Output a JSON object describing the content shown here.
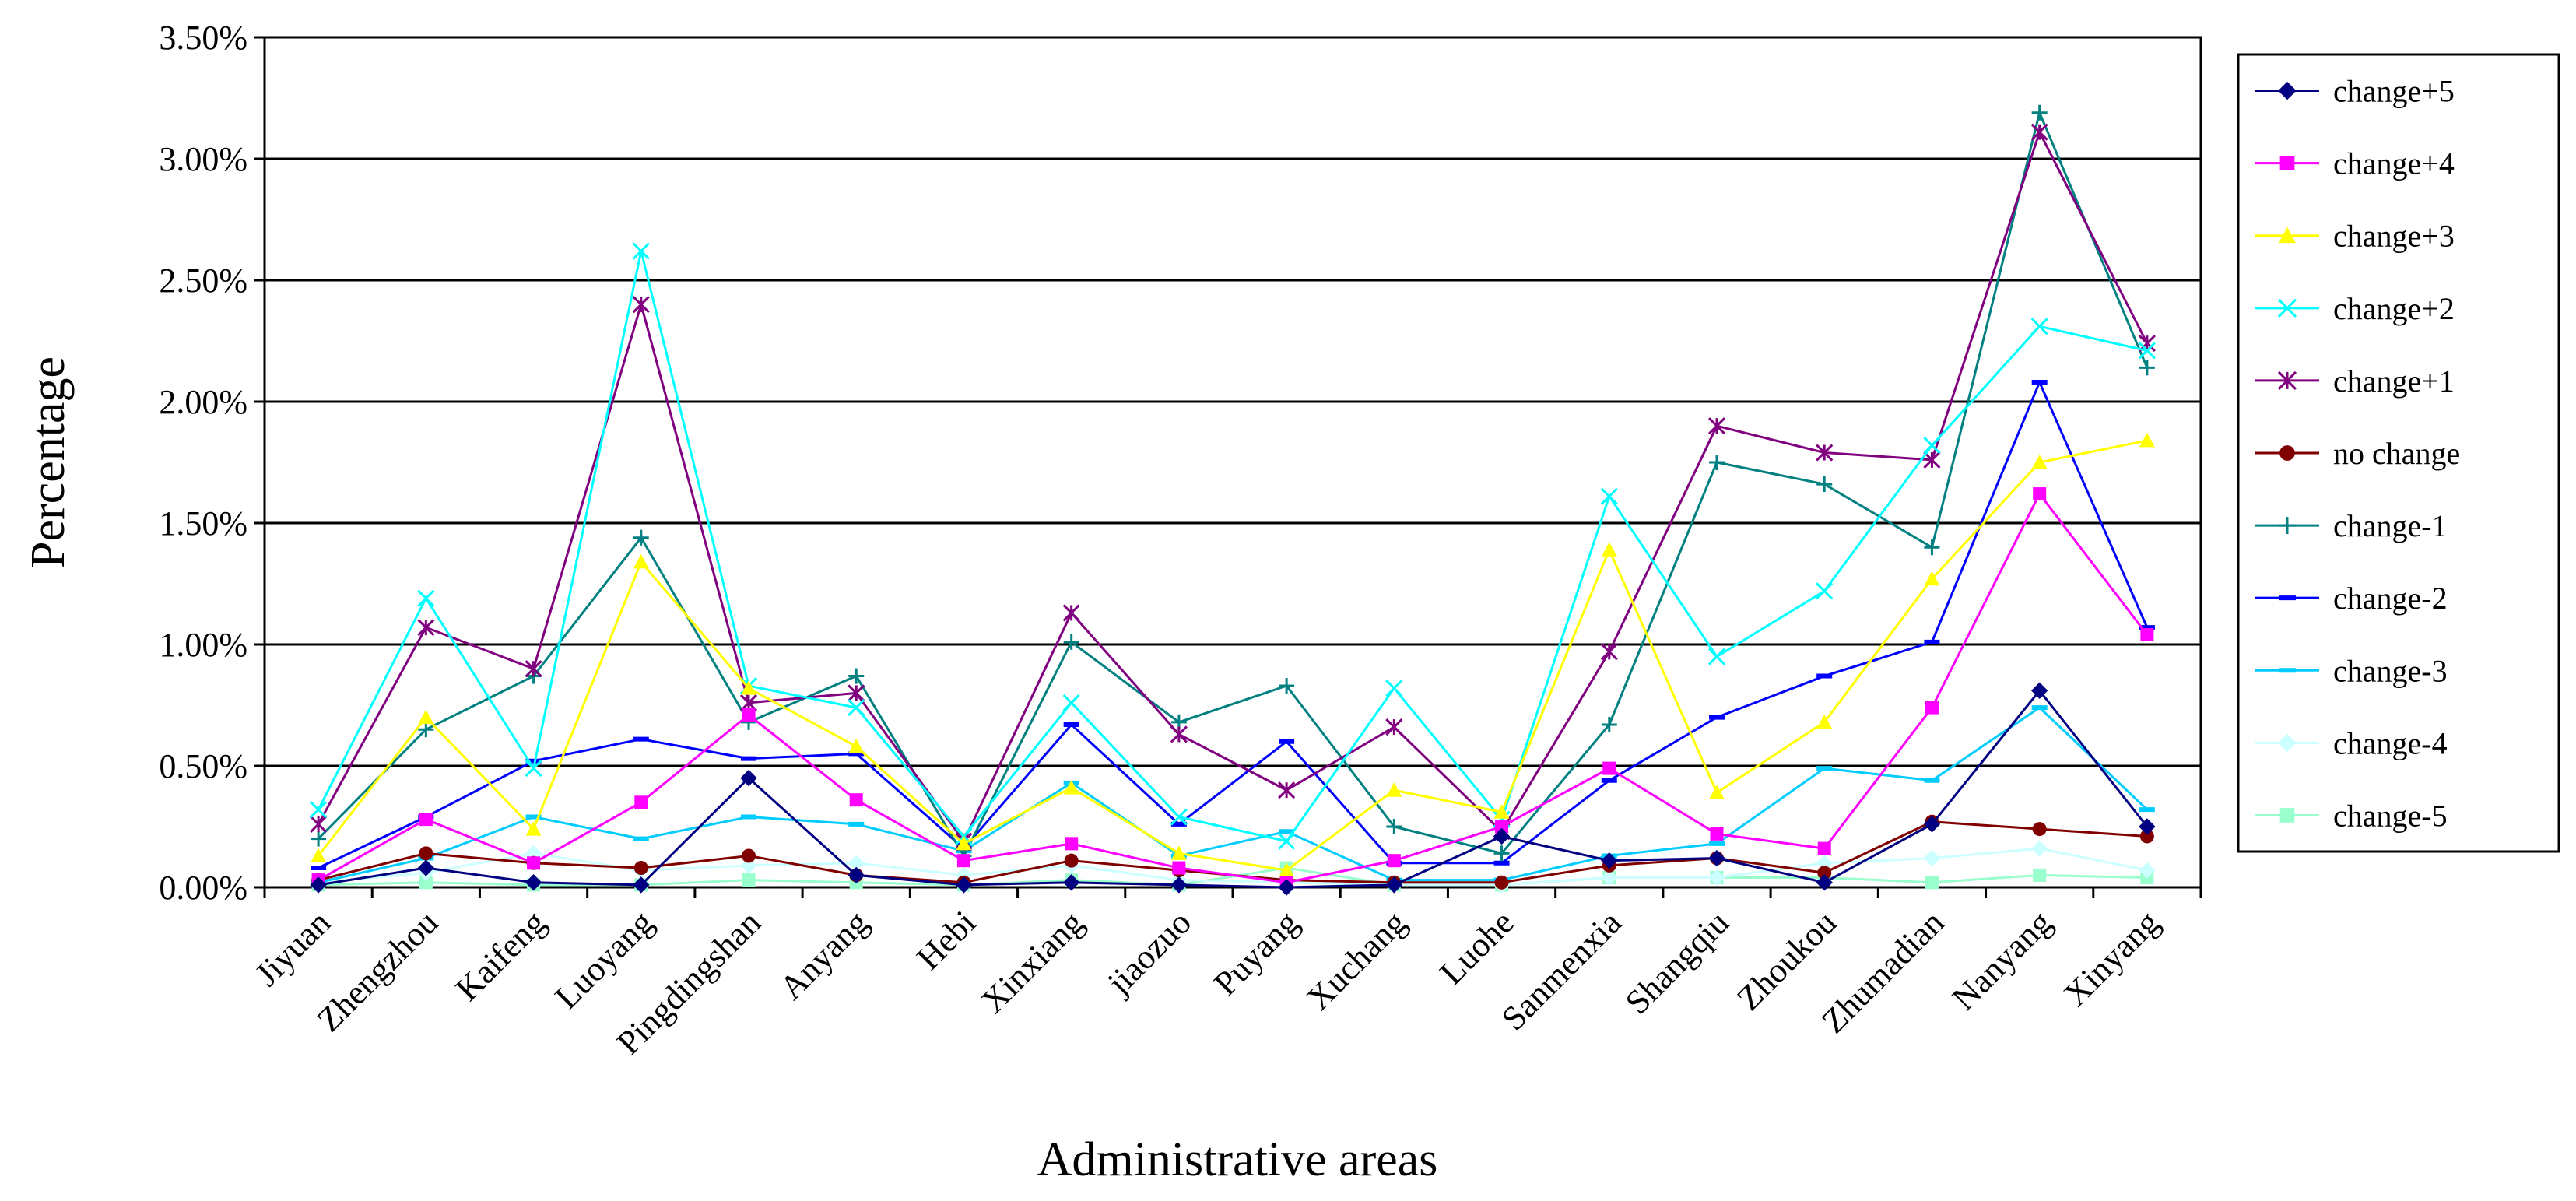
{
  "chart_data": {
    "type": "line",
    "title": "",
    "xlabel": "Administrative areas",
    "ylabel": "Percentage",
    "ylim": [
      0,
      0.035
    ],
    "yticks": [
      "0.00%",
      "0.50%",
      "1.00%",
      "1.50%",
      "2.00%",
      "2.50%",
      "3.00%",
      "3.50%"
    ],
    "grid": "horizontal",
    "legend_position": "right",
    "categories": [
      "Jiyuan",
      "Zhengzhou",
      "Kaifeng",
      "Luoyang",
      "Pingdingshan",
      "Anyang",
      "Hebi",
      "Xinxiang",
      "jiaozuo",
      "Puyang",
      "Xuchang",
      "Luohe",
      "Sanmenxia",
      "Shangqiu",
      "Zhoukou",
      "Zhumadian",
      "Nanyang",
      "Xinyang"
    ],
    "series": [
      {
        "name": "change+5",
        "color": "#000080",
        "marker": "diamond",
        "values": [
          0.0001,
          0.0008,
          0.0002,
          0.0001,
          0.0045,
          0.0005,
          0.0001,
          0.0002,
          0.0001,
          0.0,
          0.0001,
          0.0021,
          0.0011,
          0.0012,
          0.0002,
          0.0026,
          0.0081,
          0.0025
        ]
      },
      {
        "name": "change+4",
        "color": "#FF00FF",
        "marker": "square",
        "values": [
          0.0003,
          0.0028,
          0.001,
          0.0035,
          0.0071,
          0.0036,
          0.0011,
          0.0018,
          0.0008,
          0.0002,
          0.0011,
          0.0025,
          0.0049,
          0.0022,
          0.0016,
          0.0074,
          0.0162,
          0.0104
        ]
      },
      {
        "name": "change+3",
        "color": "#FFFF00",
        "marker": "triangle",
        "values": [
          0.0013,
          0.007,
          0.0024,
          0.0134,
          0.0082,
          0.0058,
          0.0018,
          0.0041,
          0.0014,
          0.0007,
          0.004,
          0.0031,
          0.0139,
          0.0039,
          0.0068,
          0.0127,
          0.0175,
          0.0184
        ]
      },
      {
        "name": "change+2",
        "color": "#00FFFF",
        "marker": "x",
        "values": [
          0.0032,
          0.0119,
          0.0049,
          0.0262,
          0.0083,
          0.0074,
          0.0021,
          0.0076,
          0.0029,
          0.0019,
          0.0082,
          0.0028,
          0.0161,
          0.0095,
          0.0122,
          0.0182,
          0.0231,
          0.0221
        ]
      },
      {
        "name": "change+1",
        "color": "#800080",
        "marker": "star",
        "values": [
          0.0026,
          0.0107,
          0.009,
          0.024,
          0.0076,
          0.008,
          0.0019,
          0.0113,
          0.0063,
          0.004,
          0.0066,
          0.0023,
          0.0097,
          0.019,
          0.0179,
          0.0176,
          0.0311,
          0.0224
        ]
      },
      {
        "name": "no  change",
        "color": "#800000",
        "marker": "circle",
        "values": [
          0.0003,
          0.0014,
          0.001,
          0.0008,
          0.0013,
          0.0005,
          0.0002,
          0.0011,
          0.0007,
          0.0003,
          0.0002,
          0.0002,
          0.0009,
          0.0012,
          0.0006,
          0.0027,
          0.0024,
          0.0021
        ]
      },
      {
        "name": "change-1",
        "color": "#008080",
        "marker": "plus",
        "values": [
          0.002,
          0.0065,
          0.0087,
          0.0144,
          0.0068,
          0.0087,
          0.0013,
          0.0101,
          0.0068,
          0.0083,
          0.0025,
          0.0014,
          0.0067,
          0.0175,
          0.0166,
          0.014,
          0.0319,
          0.0214
        ]
      },
      {
        "name": "change-2",
        "color": "#0000FF",
        "marker": "dash",
        "values": [
          0.0008,
          0.0029,
          0.0052,
          0.0061,
          0.0053,
          0.0055,
          0.0016,
          0.0067,
          0.0026,
          0.006,
          0.001,
          0.001,
          0.0044,
          0.007,
          0.0087,
          0.0101,
          0.0208,
          0.0107
        ]
      },
      {
        "name": "change-3",
        "color": "#00CCFF",
        "marker": "dash",
        "values": [
          0.0002,
          0.0012,
          0.0029,
          0.002,
          0.0029,
          0.0026,
          0.0015,
          0.0043,
          0.0013,
          0.0023,
          0.0003,
          0.0003,
          0.0013,
          0.0018,
          0.0049,
          0.0044,
          0.0074,
          0.0032
        ]
      },
      {
        "name": "change-4",
        "color": "#CCFFFF",
        "marker": "diamond",
        "values": [
          0.0002,
          0.0006,
          0.0014,
          0.0007,
          0.0009,
          0.001,
          0.0005,
          0.0009,
          0.0003,
          0.0002,
          0.0001,
          0.0001,
          0.0004,
          0.0004,
          0.001,
          0.0012,
          0.0016,
          0.0007
        ]
      },
      {
        "name": "change-5",
        "color": "#99FFCC",
        "marker": "square",
        "values": [
          0.0001,
          0.0002,
          0.0001,
          0.0001,
          0.0003,
          0.0002,
          0.0001,
          0.0003,
          0.0001,
          0.0008,
          0.0001,
          0.0001,
          0.0004,
          0.0004,
          0.0004,
          0.0002,
          0.0005,
          0.0004
        ]
      }
    ]
  }
}
